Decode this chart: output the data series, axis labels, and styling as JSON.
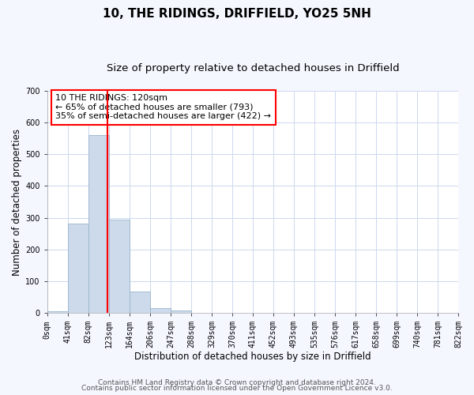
{
  "title": "10, THE RIDINGS, DRIFFIELD, YO25 5NH",
  "subtitle": "Size of property relative to detached houses in Driffield",
  "xlabel": "Distribution of detached houses by size in Driffield",
  "ylabel": "Number of detached properties",
  "bin_edges": [
    0,
    41,
    82,
    123,
    164,
    206,
    247,
    288,
    329,
    370,
    411,
    452,
    493,
    535,
    576,
    617,
    658,
    699,
    740,
    781,
    822
  ],
  "bin_labels": [
    "0sqm",
    "41sqm",
    "82sqm",
    "123sqm",
    "164sqm",
    "206sqm",
    "247sqm",
    "288sqm",
    "329sqm",
    "370sqm",
    "411sqm",
    "452sqm",
    "493sqm",
    "535sqm",
    "576sqm",
    "617sqm",
    "658sqm",
    "699sqm",
    "740sqm",
    "781sqm",
    "822sqm"
  ],
  "bar_heights": [
    5,
    282,
    560,
    293,
    68,
    14,
    8,
    0,
    0,
    0,
    0,
    0,
    0,
    0,
    0,
    0,
    0,
    0,
    0,
    0
  ],
  "bar_color": "#ccdaeb",
  "bar_edge_color": "#9ab4cc",
  "vline_x": 120,
  "vline_color": "red",
  "ylim": [
    0,
    700
  ],
  "yticks": [
    0,
    100,
    200,
    300,
    400,
    500,
    600,
    700
  ],
  "annotation_text": "10 THE RIDINGS: 120sqm\n← 65% of detached houses are smaller (793)\n35% of semi-detached houses are larger (422) →",
  "annotation_box_color": "#ffffff",
  "annotation_border_color": "red",
  "footer_line1": "Contains HM Land Registry data © Crown copyright and database right 2024.",
  "footer_line2": "Contains public sector information licensed under the Open Government Licence v3.0.",
  "plot_bg_color": "#ffffff",
  "fig_bg_color": "#f5f7ff",
  "grid_color": "#ccd8ee",
  "title_fontsize": 11,
  "subtitle_fontsize": 9.5,
  "axis_label_fontsize": 8.5,
  "tick_fontsize": 7,
  "annotation_fontsize": 8,
  "footer_fontsize": 6.5
}
